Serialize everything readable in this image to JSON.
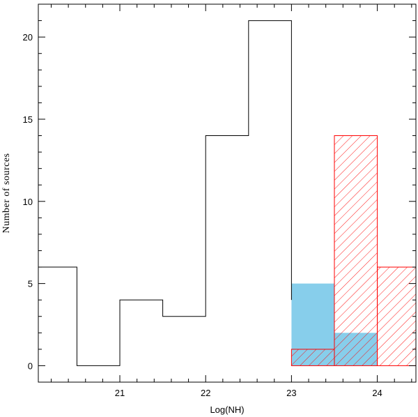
{
  "chart_data": {
    "type": "bar",
    "title": "",
    "xlabel": "Log(NH)",
    "ylabel": "Number of sources",
    "xlim": [
      20.05,
      24.45
    ],
    "ylim": [
      -1,
      22
    ],
    "x_ticks": [
      21,
      22,
      23,
      24
    ],
    "x_tick_labels": [
      "21",
      "22",
      "23",
      "24"
    ],
    "y_ticks": [
      0,
      5,
      10,
      15,
      20
    ],
    "y_tick_labels": [
      "0",
      "5",
      "10",
      "15",
      "20"
    ],
    "bin_edges": [
      20.0,
      20.5,
      21.0,
      21.5,
      22.0,
      22.5,
      23.0,
      23.5,
      24.0,
      24.5
    ],
    "series": [
      {
        "style": "outline",
        "color": "#000000",
        "bins": [
          {
            "x0": 20.0,
            "x1": 20.5,
            "value": 6
          },
          {
            "x0": 20.5,
            "x1": 21.0,
            "value": 0
          },
          {
            "x0": 21.0,
            "x1": 21.5,
            "value": 4
          },
          {
            "x0": 21.5,
            "x1": 22.0,
            "value": 3
          },
          {
            "x0": 22.0,
            "x1": 22.5,
            "value": 14
          },
          {
            "x0": 22.5,
            "x1": 23.0,
            "value": 21
          }
        ]
      },
      {
        "style": "solid-fill",
        "color": "#87ceeb",
        "bins": [
          {
            "x0": 23.0,
            "x1": 23.5,
            "value": 5
          },
          {
            "x0": 23.5,
            "x1": 24.0,
            "value": 2
          }
        ]
      },
      {
        "style": "hatched",
        "color": "#ff0000",
        "bins": [
          {
            "x0": 23.0,
            "x1": 23.5,
            "value": 1
          },
          {
            "x0": 23.5,
            "x1": 24.0,
            "value": 14
          },
          {
            "x0": 24.0,
            "x1": 24.5,
            "value": 6
          }
        ]
      }
    ],
    "grid": false,
    "legend": "none"
  }
}
